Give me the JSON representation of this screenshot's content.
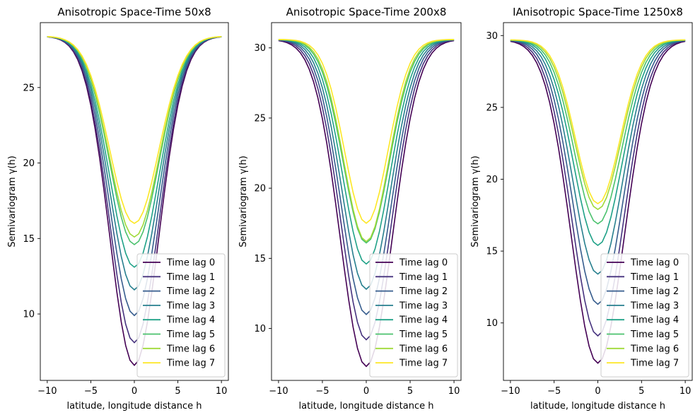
{
  "chart_data": [
    {
      "type": "line",
      "title": "Anisotropic Space-Time 50x8",
      "xlabel": "latitude, longitude distance h",
      "ylabel": "Semivariogram γ(h)",
      "xlim": [
        -10.8,
        10.8
      ],
      "ylim": [
        5.6,
        29.3
      ],
      "xticks": [
        -10,
        -5,
        0,
        5,
        10
      ],
      "yticks": [
        10,
        15,
        20,
        25
      ],
      "sill": 28.4,
      "legend": "lower right",
      "series": [
        {
          "name": "Time lag 0",
          "nugget": 6.6,
          "range": 4.0,
          "color": "#440154"
        },
        {
          "name": "Time lag 1",
          "nugget": 8.1,
          "range": 4.0,
          "color": "#46327e"
        },
        {
          "name": "Time lag 2",
          "nugget": 9.9,
          "range": 4.0,
          "color": "#365c8d"
        },
        {
          "name": "Time lag 3",
          "nugget": 11.6,
          "range": 4.0,
          "color": "#277f8e"
        },
        {
          "name": "Time lag 4",
          "nugget": 13.1,
          "range": 4.0,
          "color": "#1fa187"
        },
        {
          "name": "Time lag 5",
          "nugget": 14.6,
          "range": 4.0,
          "color": "#4ac16d"
        },
        {
          "name": "Time lag 6",
          "nugget": 15.1,
          "range": 4.0,
          "color": "#a0da39"
        },
        {
          "name": "Time lag 7",
          "nugget": 16.0,
          "range": 4.0,
          "color": "#fde725"
        }
      ]
    },
    {
      "type": "line",
      "title": "Anisotropic Space-Time 200x8",
      "xlabel": "latitude, longitude distance h",
      "ylabel": "Semivariogram γ(h)",
      "xlim": [
        -10.8,
        10.8
      ],
      "ylim": [
        6.3,
        31.8
      ],
      "xticks": [
        -10,
        -5,
        0,
        5,
        10
      ],
      "yticks": [
        10,
        15,
        20,
        25,
        30
      ],
      "sill": 30.6,
      "legend": "lower right",
      "series": [
        {
          "name": "Time lag 0",
          "nugget": 7.3,
          "range": 4.2,
          "color": "#440154"
        },
        {
          "name": "Time lag 1",
          "nugget": 9.2,
          "range": 4.1,
          "color": "#46327e"
        },
        {
          "name": "Time lag 2",
          "nugget": 11.0,
          "range": 4.0,
          "color": "#365c8d"
        },
        {
          "name": "Time lag 3",
          "nugget": 12.8,
          "range": 3.9,
          "color": "#277f8e"
        },
        {
          "name": "Time lag 4",
          "nugget": 14.6,
          "range": 3.8,
          "color": "#1fa187"
        },
        {
          "name": "Time lag 5",
          "nugget": 16.1,
          "range": 3.7,
          "color": "#4ac16d"
        },
        {
          "name": "Time lag 6",
          "nugget": 16.2,
          "range": 3.6,
          "color": "#a0da39"
        },
        {
          "name": "Time lag 7",
          "nugget": 17.5,
          "range": 3.5,
          "color": "#fde725"
        }
      ]
    },
    {
      "type": "line",
      "title": "IAnisotropic Space-Time 1250x8",
      "xlabel": "latitude, longitude distance h",
      "ylabel": "Semivariogram γ(h)",
      "xlim": [
        -10.8,
        10.8
      ],
      "ylim": [
        6.0,
        30.9
      ],
      "xticks": [
        -10,
        -5,
        0,
        5,
        10
      ],
      "yticks": [
        10,
        15,
        20,
        25,
        30
      ],
      "sill": 29.7,
      "legend": "lower right",
      "series": [
        {
          "name": "Time lag 0",
          "nugget": 7.2,
          "range": 4.3,
          "color": "#440154"
        },
        {
          "name": "Time lag 1",
          "nugget": 9.1,
          "range": 4.2,
          "color": "#46327e"
        },
        {
          "name": "Time lag 2",
          "nugget": 11.3,
          "range": 4.1,
          "color": "#365c8d"
        },
        {
          "name": "Time lag 3",
          "nugget": 13.4,
          "range": 4.0,
          "color": "#277f8e"
        },
        {
          "name": "Time lag 4",
          "nugget": 15.4,
          "range": 3.9,
          "color": "#1fa187"
        },
        {
          "name": "Time lag 5",
          "nugget": 16.9,
          "range": 3.8,
          "color": "#4ac16d"
        },
        {
          "name": "Time lag 6",
          "nugget": 17.9,
          "range": 3.7,
          "color": "#a0da39"
        },
        {
          "name": "Time lag 7",
          "nugget": 18.3,
          "range": 3.6,
          "color": "#fde725"
        }
      ]
    }
  ]
}
